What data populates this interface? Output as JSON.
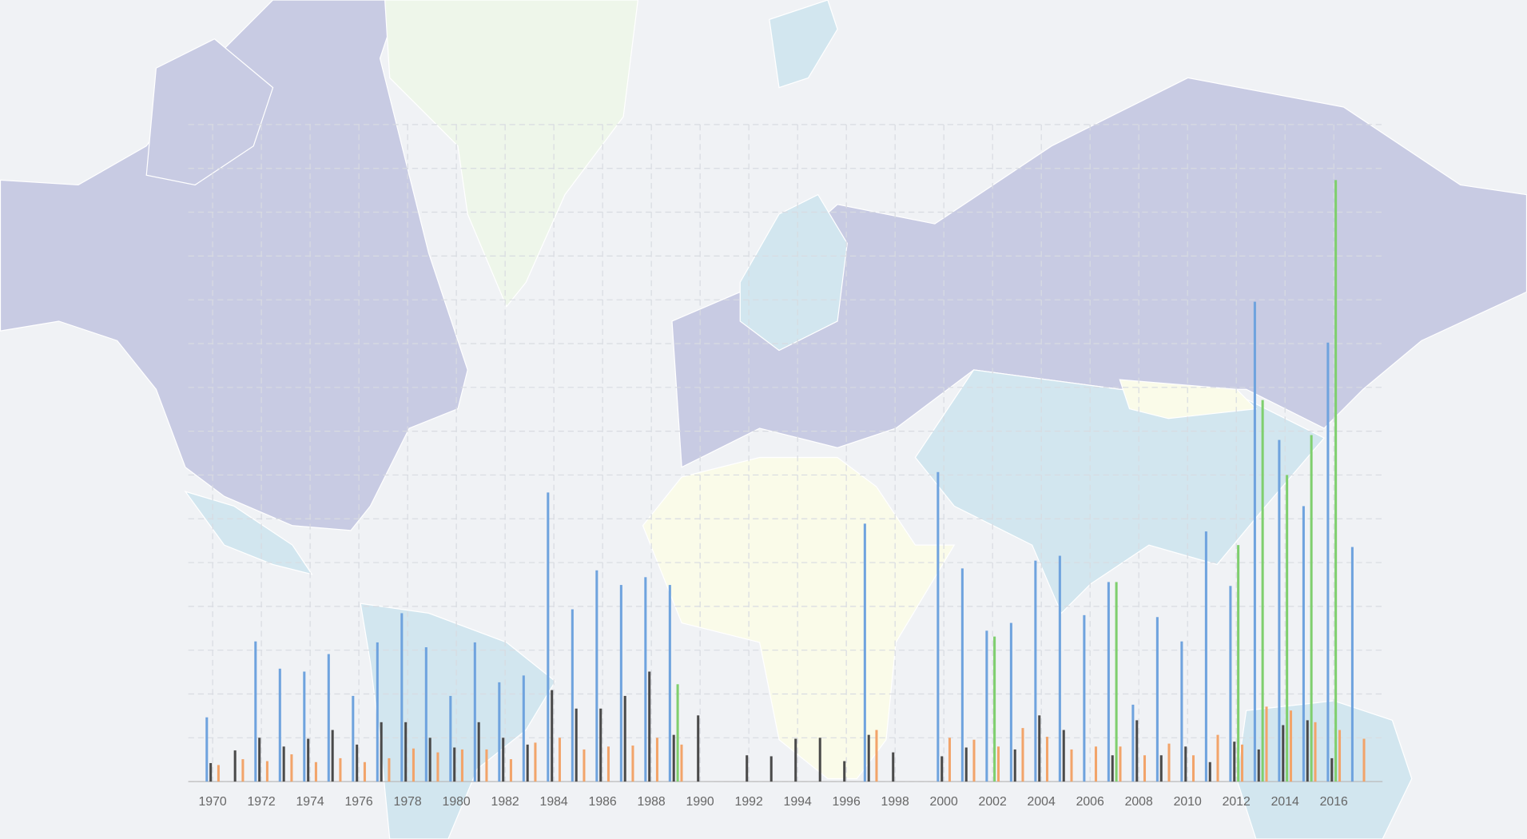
{
  "chart_data": {
    "type": "bar",
    "x": [
      1970,
      1971,
      1972,
      1973,
      1974,
      1975,
      1976,
      1977,
      1978,
      1979,
      1980,
      1981,
      1982,
      1983,
      1984,
      1985,
      1986,
      1987,
      1988,
      1989,
      1990,
      1991,
      1992,
      1993,
      1994,
      1995,
      1996,
      1997,
      1998,
      1999,
      2000,
      2001,
      2002,
      2003,
      2004,
      2005,
      2006,
      2007,
      2008,
      2009,
      2010,
      2011,
      2012,
      2013,
      2014,
      2015,
      2016,
      2017
    ],
    "xlim": [
      1969,
      2018
    ],
    "xticks": [
      1970,
      1972,
      1974,
      1976,
      1978,
      1980,
      1982,
      1984,
      1986,
      1988,
      1990,
      1992,
      1994,
      1996,
      1998,
      2000,
      2002,
      2004,
      2006,
      2008,
      2010,
      2012,
      2014,
      2016
    ],
    "ylim": [
      0,
      675
    ],
    "yticks": [
      0,
      45,
      90,
      135,
      180,
      225,
      270,
      315,
      360,
      405,
      450,
      495,
      540,
      585,
      630,
      675
    ],
    "grid": true,
    "series": [
      {
        "color": "#6fa3de",
        "values": [
          66,
          0,
          144,
          116,
          113,
          131,
          88,
          143,
          173,
          138,
          88,
          143,
          102,
          109,
          297,
          177,
          217,
          202,
          210,
          202,
          0,
          0,
          0,
          0,
          0,
          0,
          0,
          265,
          0,
          0,
          318,
          219,
          155,
          163,
          227,
          232,
          171,
          205,
          79,
          169,
          144,
          257,
          201,
          493,
          351,
          283,
          451,
          241
        ]
      },
      {
        "color": "#4a4a4a",
        "values": [
          19,
          32,
          45,
          36,
          44,
          53,
          38,
          61,
          61,
          45,
          35,
          61,
          45,
          38,
          94,
          75,
          75,
          88,
          113,
          48,
          68,
          0,
          27,
          26,
          44,
          45,
          21,
          48,
          30,
          0,
          26,
          35,
          0,
          33,
          68,
          53,
          0,
          27,
          63,
          27,
          36,
          20,
          41,
          33,
          58,
          63,
          24,
          0
        ]
      },
      {
        "color": "#7fcf6e",
        "values": [
          0,
          0,
          0,
          0,
          0,
          0,
          0,
          0,
          0,
          0,
          0,
          0,
          0,
          0,
          0,
          0,
          0,
          0,
          0,
          100,
          0,
          0,
          0,
          0,
          0,
          0,
          0,
          0,
          0,
          0,
          0,
          0,
          149,
          0,
          0,
          0,
          0,
          205,
          0,
          0,
          0,
          0,
          243,
          392,
          315,
          356,
          618,
          0
        ]
      },
      {
        "color": "#f2a46a",
        "values": [
          17,
          23,
          21,
          28,
          20,
          24,
          20,
          24,
          34,
          30,
          33,
          33,
          23,
          40,
          45,
          33,
          36,
          37,
          45,
          38,
          0,
          0,
          0,
          0,
          0,
          0,
          0,
          53,
          0,
          0,
          45,
          43,
          36,
          55,
          46,
          33,
          36,
          36,
          27,
          39,
          27,
          48,
          38,
          77,
          73,
          61,
          53,
          44
        ]
      }
    ]
  }
}
